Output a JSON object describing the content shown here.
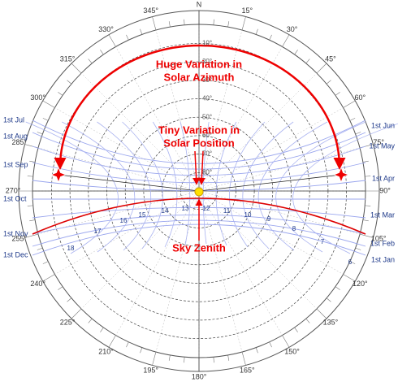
{
  "compass": {
    "north": "N",
    "azimuth_labels": [
      "15°",
      "30°",
      "45°",
      "60°",
      "75°",
      "90°",
      "105°",
      "120°",
      "135°",
      "150°",
      "165°",
      "180°",
      "195°",
      "210°",
      "225°",
      "240°",
      "255°",
      "270°",
      "285°",
      "300°",
      "315°",
      "330°",
      "345°"
    ]
  },
  "altitude_labels": [
    "10°",
    "20°",
    "30°",
    "40°",
    "50°",
    "60°",
    "70°",
    "80°"
  ],
  "months_left": [
    "1st Jul",
    "1st Aug",
    "1st Sep",
    "1st Oct",
    "1st Nov",
    "1st Dec"
  ],
  "months_right": [
    "1st Jun",
    "1st May",
    "1st Apr",
    "1st Mar",
    "1st Feb",
    "1st Jan"
  ],
  "hours": [
    "18",
    "17",
    "16",
    "15",
    "14",
    "13",
    "12",
    "11",
    "10",
    "9",
    "8",
    "7",
    "6"
  ],
  "annotations": {
    "azimuth": [
      "Huge Variation in",
      "Solar Azimuth"
    ],
    "position": [
      "Tiny Variation in",
      "Solar Position"
    ],
    "zenith": "Sky Zenith"
  }
}
